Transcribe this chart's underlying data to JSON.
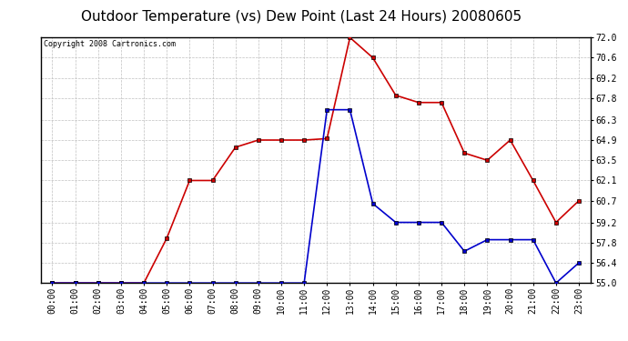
{
  "title": "Outdoor Temperature (vs) Dew Point (Last 24 Hours) 20080605",
  "copyright": "Copyright 2008 Cartronics.com",
  "hours": [
    "00:00",
    "01:00",
    "02:00",
    "03:00",
    "04:00",
    "05:00",
    "06:00",
    "07:00",
    "08:00",
    "09:00",
    "10:00",
    "11:00",
    "12:00",
    "13:00",
    "14:00",
    "15:00",
    "16:00",
    "17:00",
    "18:00",
    "19:00",
    "20:00",
    "21:00",
    "22:00",
    "23:00"
  ],
  "temp": [
    55.0,
    55.0,
    55.0,
    55.0,
    55.0,
    58.1,
    62.1,
    62.1,
    64.4,
    64.9,
    64.9,
    64.9,
    65.0,
    72.0,
    70.6,
    68.0,
    67.5,
    67.5,
    64.0,
    63.5,
    64.9,
    62.1,
    59.2,
    60.7
  ],
  "dew": [
    55.0,
    55.0,
    55.0,
    55.0,
    55.0,
    55.0,
    55.0,
    55.0,
    55.0,
    55.0,
    55.0,
    55.0,
    67.0,
    67.0,
    60.5,
    59.2,
    59.2,
    59.2,
    57.2,
    58.0,
    58.0,
    58.0,
    55.0,
    56.4
  ],
  "temp_color": "#cc0000",
  "dew_color": "#0000cc",
  "bg_color": "#ffffff",
  "plot_bg_color": "#ffffff",
  "grid_color": "#c0c0c0",
  "ylim_min": 55.0,
  "ylim_max": 72.0,
  "yticks": [
    55.0,
    56.4,
    57.8,
    59.2,
    60.7,
    62.1,
    63.5,
    64.9,
    66.3,
    67.8,
    69.2,
    70.6,
    72.0
  ],
  "title_fontsize": 11,
  "copyright_fontsize": 6,
  "tick_fontsize": 7,
  "marker": "s",
  "marker_size": 2.5,
  "line_width": 1.2
}
